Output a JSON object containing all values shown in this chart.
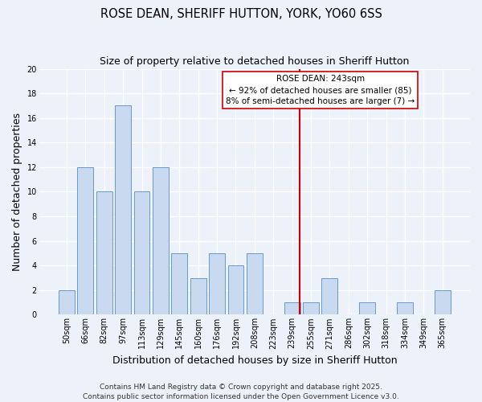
{
  "title": "ROSE DEAN, SHERIFF HUTTON, YORK, YO60 6SS",
  "subtitle": "Size of property relative to detached houses in Sheriff Hutton",
  "xlabel": "Distribution of detached houses by size in Sheriff Hutton",
  "ylabel": "Number of detached properties",
  "bar_color": "#c9d9f0",
  "bar_edge_color": "#6699cc",
  "categories": [
    "50sqm",
    "66sqm",
    "82sqm",
    "97sqm",
    "113sqm",
    "129sqm",
    "145sqm",
    "160sqm",
    "176sqm",
    "192sqm",
    "208sqm",
    "223sqm",
    "239sqm",
    "255sqm",
    "271sqm",
    "286sqm",
    "302sqm",
    "318sqm",
    "334sqm",
    "349sqm",
    "365sqm"
  ],
  "values": [
    2,
    12,
    10,
    17,
    10,
    12,
    5,
    3,
    5,
    4,
    5,
    0,
    1,
    1,
    3,
    0,
    1,
    0,
    1,
    0,
    2
  ],
  "ylim": [
    0,
    20
  ],
  "yticks": [
    0,
    2,
    4,
    6,
    8,
    10,
    12,
    14,
    16,
    18,
    20
  ],
  "vline_x_index": 12.42,
  "vline_color": "#cc0000",
  "annotation_title": "ROSE DEAN: 243sqm",
  "annotation_line1": "← 92% of detached houses are smaller (85)",
  "annotation_line2": "8% of semi-detached houses are larger (7) →",
  "footer1": "Contains HM Land Registry data © Crown copyright and database right 2025.",
  "footer2": "Contains public sector information licensed under the Open Government Licence v3.0.",
  "background_color": "#edf1fa",
  "grid_color": "#ffffff",
  "title_fontsize": 10.5,
  "subtitle_fontsize": 9,
  "axis_label_fontsize": 9,
  "tick_fontsize": 7,
  "annotation_fontsize": 7.5,
  "footer_fontsize": 6.5
}
